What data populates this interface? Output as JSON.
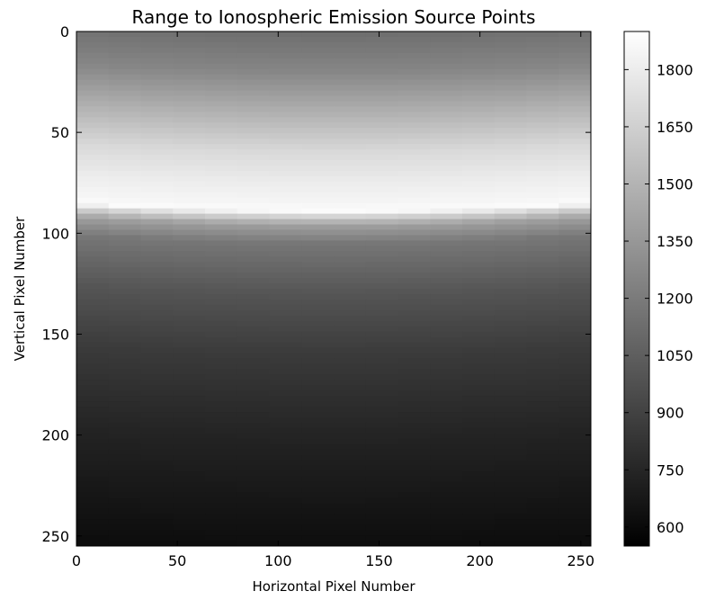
{
  "chart_data": {
    "type": "heatmap",
    "title": "Range to Ionospheric Emission Source Points",
    "xlabel": "Horizontal Pixel Number",
    "ylabel": "Vertical Pixel Number",
    "xlim": [
      0,
      255
    ],
    "ylim": [
      255,
      0
    ],
    "xticks": [
      "0",
      "50",
      "100",
      "150",
      "200",
      "250"
    ],
    "xtick_values": [
      0,
      50,
      100,
      150,
      200,
      250
    ],
    "yticks": [
      "0",
      "50",
      "100",
      "150",
      "200",
      "250"
    ],
    "ytick_values": [
      0,
      50,
      100,
      150,
      200,
      250
    ],
    "colormap": "gray",
    "colorbar": {
      "min": 550,
      "max": 1900,
      "ticks": [
        "600",
        "750",
        "900",
        "1050",
        "1200",
        "1350",
        "1500",
        "1650",
        "1800"
      ],
      "tick_values": [
        600,
        750,
        900,
        1050,
        1200,
        1350,
        1500,
        1650,
        1800
      ]
    },
    "row_profile": {
      "rows": [
        0,
        20,
        40,
        60,
        75,
        85,
        89,
        92,
        96,
        105,
        130,
        160,
        200,
        255
      ],
      "values": [
        1130,
        1260,
        1480,
        1700,
        1800,
        1850,
        1880,
        1650,
        1400,
        1180,
        1000,
        860,
        740,
        620
      ]
    },
    "edge_curvature_rows": 4
  }
}
